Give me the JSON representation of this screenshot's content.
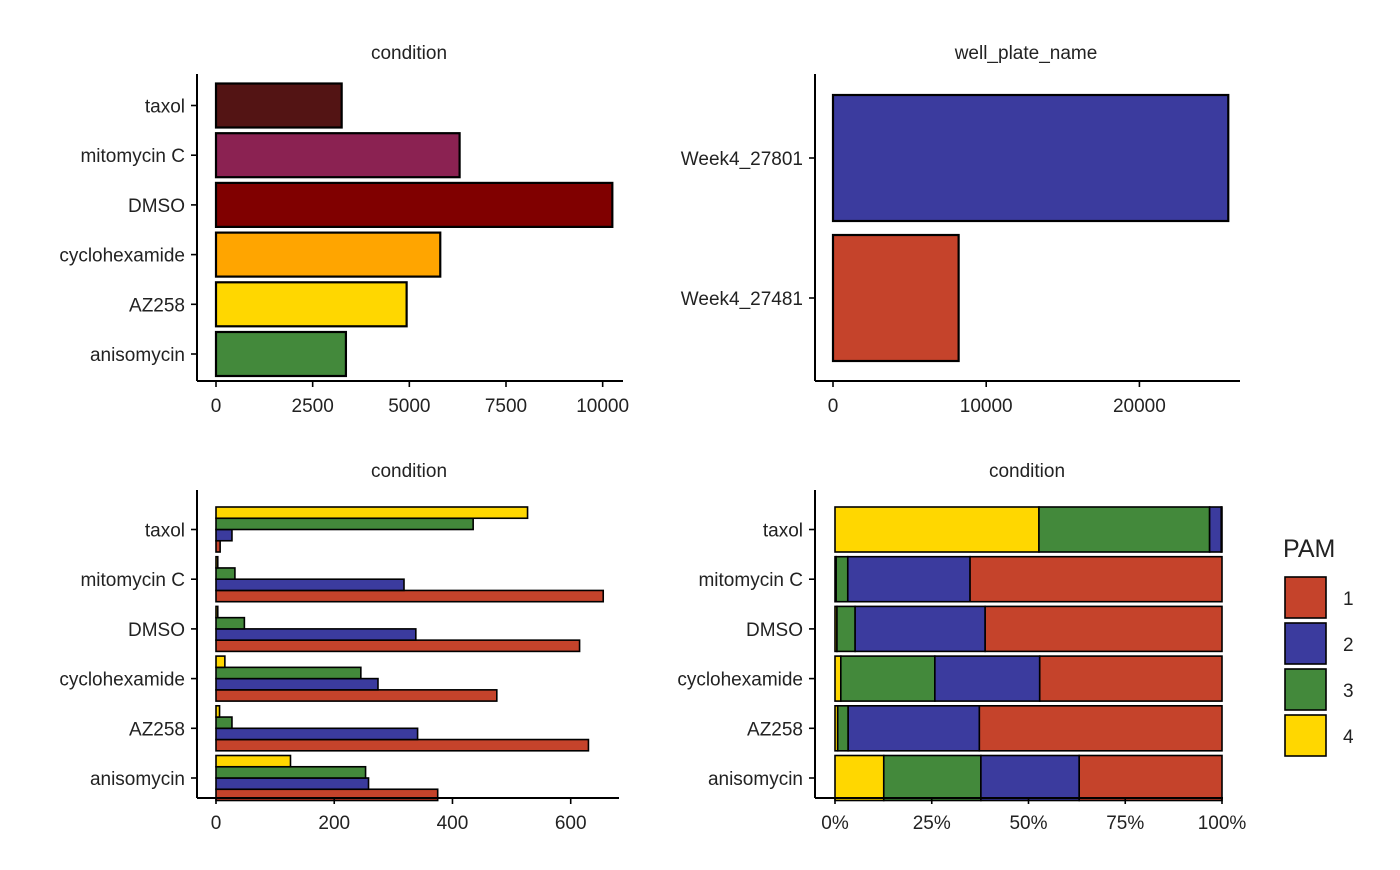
{
  "colors": {
    "PAM_1": "#C5432B",
    "PAM_2": "#3B3B9E",
    "PAM_3": "#43893B",
    "PAM_4": "#FFD700"
  },
  "chart_data": [
    {
      "type": "bar",
      "orientation": "horizontal",
      "title": "condition",
      "categories": [
        "taxol",
        "mitomycin C",
        "DMSO",
        "cyclohexamide",
        "AZ258",
        "anisomycin"
      ],
      "values": [
        3250,
        6300,
        10250,
        5800,
        4930,
        3360
      ],
      "bar_colors": [
        "#531414",
        "#8B2252",
        "#800000",
        "#FFA500",
        "#FFD700",
        "#43893B"
      ],
      "xlim": [
        0,
        10500
      ],
      "xticks": [
        0,
        2500,
        5000,
        7500,
        10000
      ],
      "xtick_labels": [
        "0",
        "2500",
        "5000",
        "7500",
        "10000"
      ]
    },
    {
      "type": "bar",
      "orientation": "horizontal",
      "title": "well_plate_name",
      "categories": [
        "Week4_27801",
        "Week4_27481"
      ],
      "values": [
        25800,
        8200
      ],
      "bar_colors": [
        "#3B3B9E",
        "#C5432B"
      ],
      "xlim": [
        0,
        26500
      ],
      "xticks": [
        0,
        10000,
        20000
      ],
      "xtick_labels": [
        "0",
        "10000",
        "20000"
      ]
    },
    {
      "type": "bar",
      "orientation": "horizontal",
      "grouping": "dodged",
      "title": "condition",
      "categories": [
        "taxol",
        "mitomycin C",
        "DMSO",
        "cyclohexamide",
        "AZ258",
        "anisomycin"
      ],
      "series": [
        {
          "name": "1",
          "values": [
            7,
            655,
            615,
            475,
            630,
            375
          ]
        },
        {
          "name": "2",
          "values": [
            27,
            318,
            338,
            274,
            341,
            258
          ]
        },
        {
          "name": "3",
          "values": [
            435,
            32,
            48,
            245,
            27,
            253
          ]
        },
        {
          "name": "4",
          "values": [
            527,
            3,
            3,
            15,
            6,
            126
          ]
        }
      ],
      "xlim": [
        0,
        680
      ],
      "xticks": [
        0,
        200,
        400,
        600
      ],
      "xtick_labels": [
        "0",
        "200",
        "400",
        "600"
      ]
    },
    {
      "type": "bar",
      "orientation": "horizontal",
      "grouping": "filled",
      "title": "condition",
      "categories": [
        "taxol",
        "mitomycin C",
        "DMSO",
        "cyclohexamide",
        "AZ258",
        "anisomycin"
      ],
      "series": [
        {
          "name": "1",
          "values": [
            0.002,
            0.651,
            0.612,
            0.471,
            0.627,
            0.369
          ]
        },
        {
          "name": "2",
          "values": [
            0.03,
            0.316,
            0.336,
            0.271,
            0.339,
            0.254
          ]
        },
        {
          "name": "3",
          "values": [
            0.441,
            0.03,
            0.047,
            0.243,
            0.027,
            0.251
          ]
        },
        {
          "name": "4",
          "values": [
            0.527,
            0.003,
            0.005,
            0.015,
            0.007,
            0.126
          ]
        }
      ],
      "xlim": [
        0,
        1
      ],
      "xticks": [
        0,
        0.25,
        0.5,
        0.75,
        1
      ],
      "xtick_labels": [
        "0%",
        "25%",
        "50%",
        "75%",
        "100%"
      ]
    }
  ],
  "legend": {
    "title": "PAM",
    "position": "right",
    "items": [
      {
        "label": "1",
        "color": "#C5432B"
      },
      {
        "label": "2",
        "color": "#3B3B9E"
      },
      {
        "label": "3",
        "color": "#43893B"
      },
      {
        "label": "4",
        "color": "#FFD700"
      }
    ]
  }
}
